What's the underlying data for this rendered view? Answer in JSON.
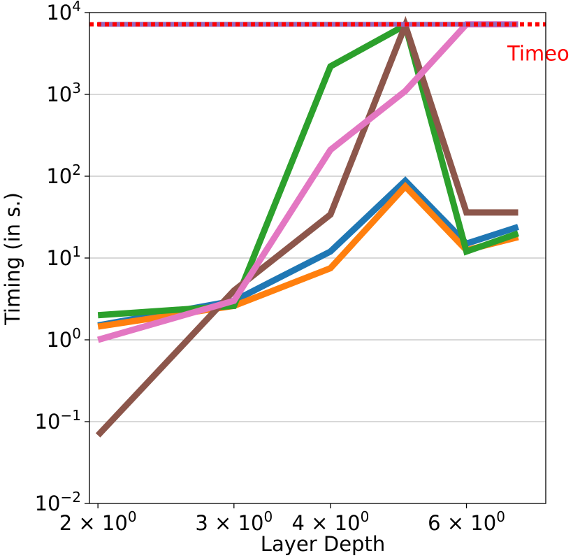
{
  "chart_data": {
    "type": "line",
    "xlabel": "Layer Depth",
    "ylabel": "Timing (in s.)",
    "x_scale": "log",
    "y_scale": "log",
    "xlim": [
      1.95,
      7.6
    ],
    "ylim": [
      0.01,
      10000
    ],
    "x_ticks": [
      {
        "value": 2,
        "label": "2 × 10",
        "exp": "0"
      },
      {
        "value": 3,
        "label": "3 × 10",
        "exp": "0"
      },
      {
        "value": 4,
        "label": "4 × 10",
        "exp": "0"
      },
      {
        "value": 6,
        "label": "6 × 10",
        "exp": "0"
      }
    ],
    "y_ticks": [
      {
        "value": 0.01,
        "label": "10",
        "exp": "−2"
      },
      {
        "value": 0.1,
        "label": "10",
        "exp": "−1"
      },
      {
        "value": 1,
        "label": "10",
        "exp": "0"
      },
      {
        "value": 10,
        "label": "10",
        "exp": "1"
      },
      {
        "value": 100,
        "label": "10",
        "exp": "2"
      },
      {
        "value": 1000,
        "label": "10",
        "exp": "3"
      },
      {
        "value": 10000,
        "label": "10",
        "exp": "4"
      }
    ],
    "grid": "horizontal",
    "x": [
      2,
      3,
      4,
      5,
      6,
      7
    ],
    "series": [
      {
        "color": "#1f77b4",
        "values": [
          1.5,
          3.0,
          12,
          88,
          15,
          24
        ]
      },
      {
        "color": "#ff7f0e",
        "values": [
          1.45,
          2.6,
          7.5,
          75,
          12.5,
          18
        ]
      },
      {
        "color": "#2ca02c",
        "values": [
          2.0,
          2.6,
          2200,
          7000,
          12,
          20
        ]
      },
      {
        "color": "#8c564b",
        "values": [
          0.068,
          4.0,
          34,
          7000,
          36,
          36
        ]
      },
      {
        "color": "#e377c2",
        "values": [
          1.0,
          3.0,
          210,
          1100,
          7200,
          7200
        ]
      },
      {
        "color": "#9467bd",
        "values": [
          null,
          null,
          null,
          null,
          null,
          null
        ]
      }
    ],
    "timeout": {
      "value": 7200,
      "label": "Timeo",
      "color": "#ff0000"
    }
  }
}
